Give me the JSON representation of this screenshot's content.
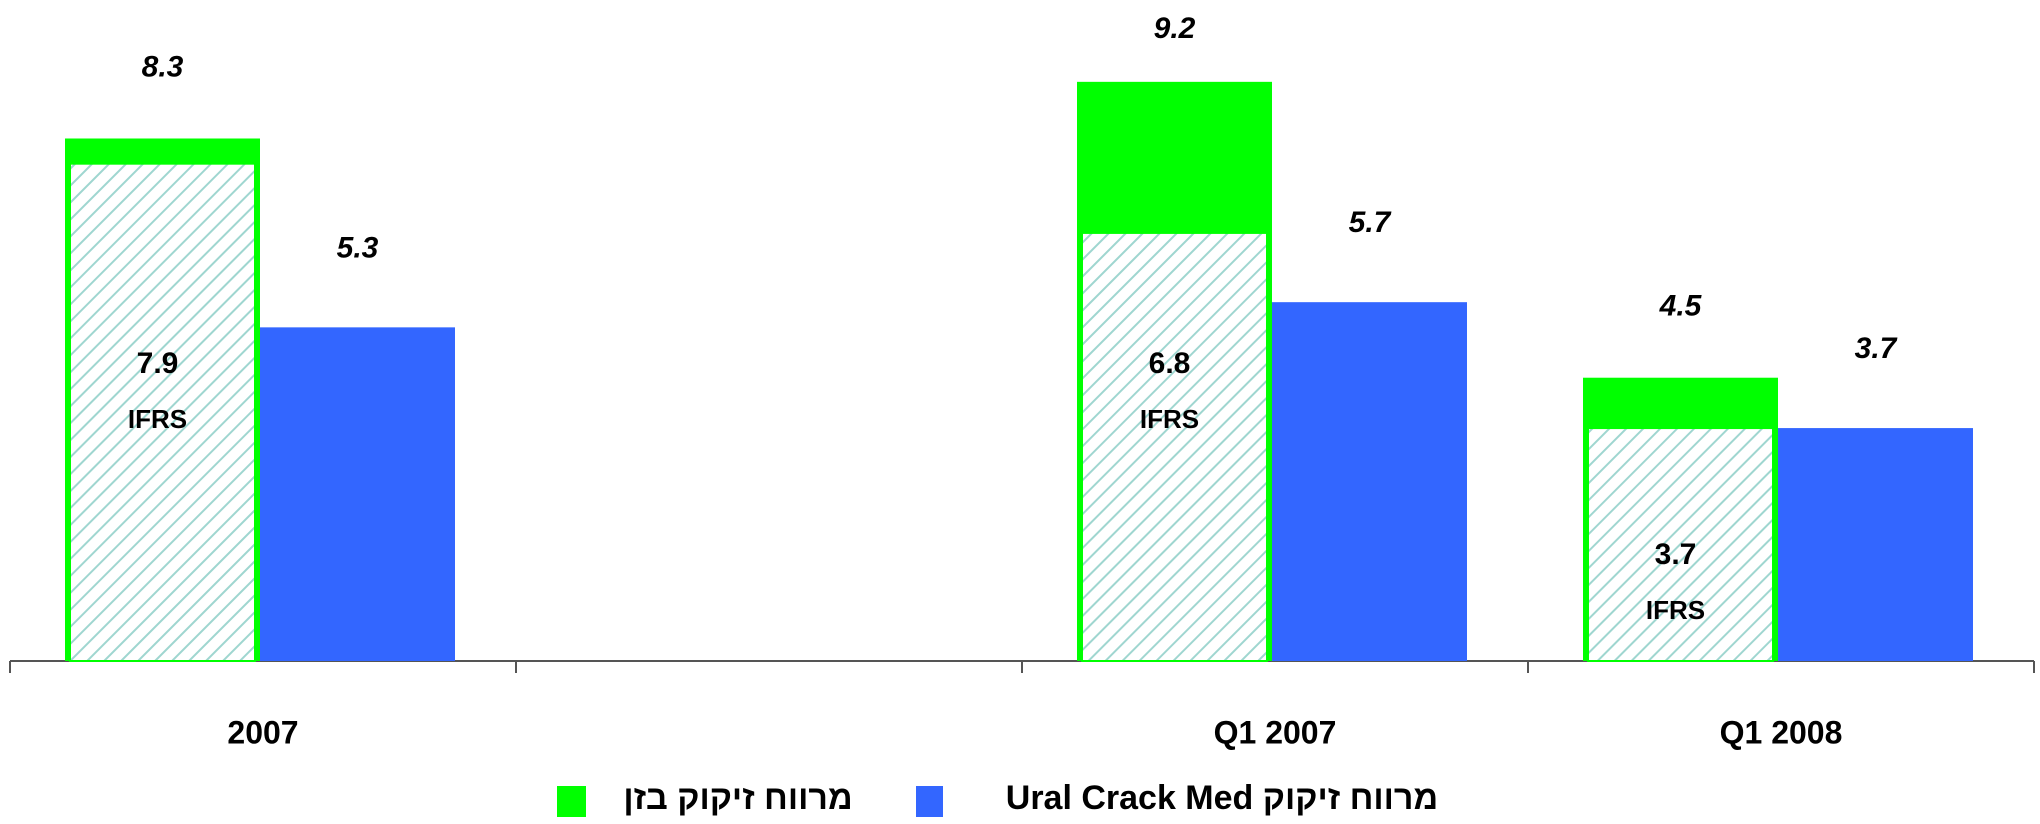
{
  "chart_data": {
    "type": "bar",
    "categories": [
      "2007",
      null,
      "Q1 2007",
      "Q1 2008"
    ],
    "series": [
      {
        "name": "מרווח זיקוק בזן",
        "color": "#00ff00",
        "values": [
          8.3,
          null,
          9.2,
          4.5
        ]
      },
      {
        "name": "IFRS",
        "color": "#9fd6d0",
        "values": [
          7.9,
          null,
          6.8,
          3.7
        ]
      },
      {
        "name": "מרווח זיקוק Ural Crack Med",
        "color": "#3366ff",
        "values": [
          5.3,
          null,
          5.7,
          3.7
        ]
      }
    ],
    "ylim": [
      0,
      10.5
    ]
  }
}
